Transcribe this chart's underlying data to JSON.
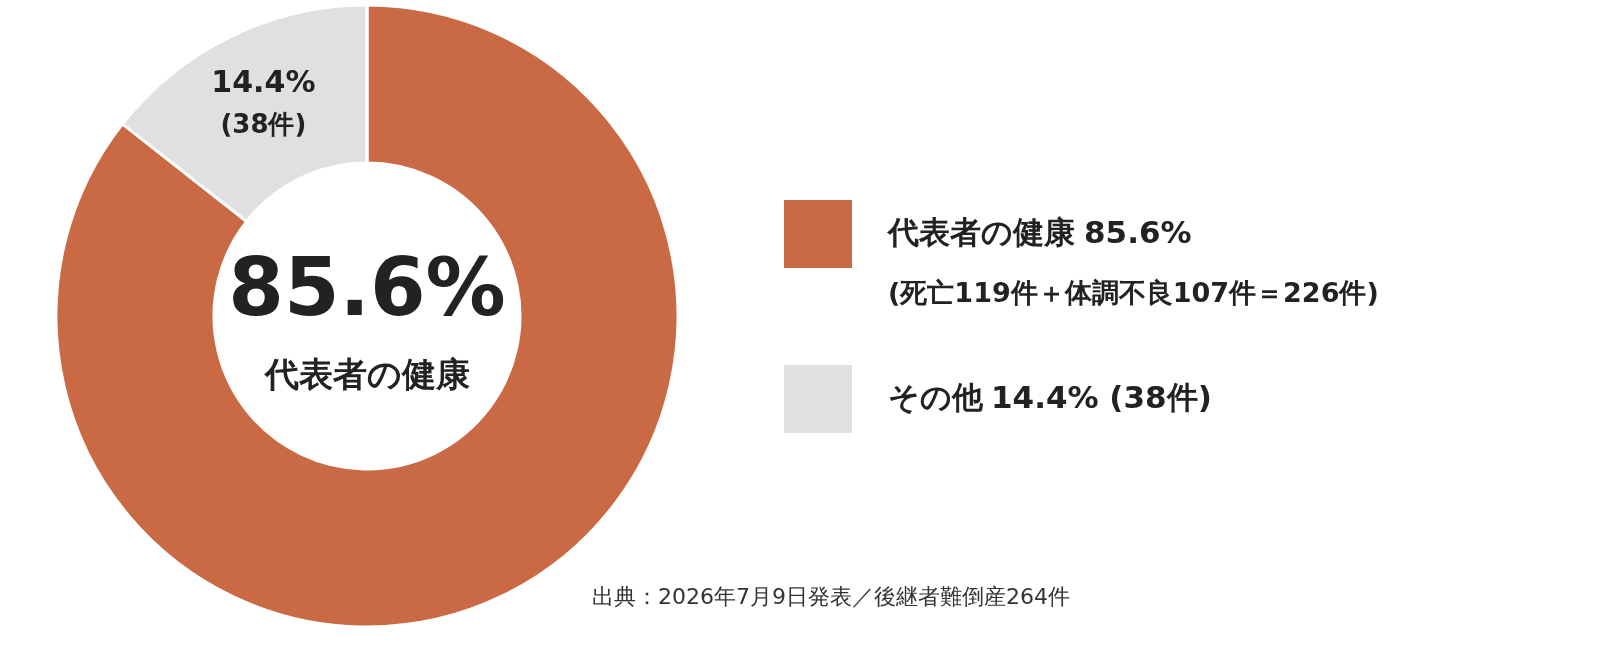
{
  "chart_data": {
    "type": "donut",
    "categories": [
      "代表者の健康",
      "その他"
    ],
    "values": [
      85.6,
      14.4
    ],
    "colors": [
      "#c96a45",
      "#e0e0e0"
    ],
    "value_labels": [
      "85.6%",
      "14.4%"
    ],
    "legend": "right",
    "annotations": [
      "(死亡119件＋体調不良107件＝226件)",
      "(38件)",
      "出典：2026年7月9日発表／後継者難倒産264件"
    ]
  }
}
